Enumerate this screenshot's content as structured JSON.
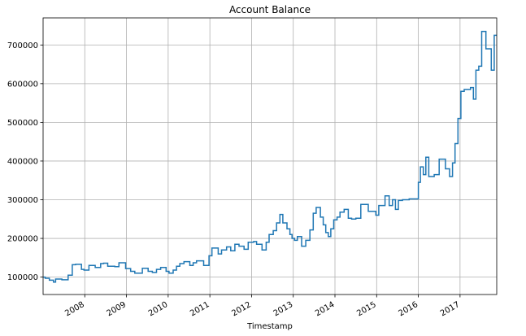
{
  "chart_data": {
    "type": "line",
    "title": "Account Balance",
    "xlabel": "Timestamp",
    "ylabel": "",
    "grid": true,
    "line_color": "#1f77b4",
    "xlim": [
      2007.0,
      2017.88
    ],
    "ylim": [
      55000,
      770000
    ],
    "x_ticks": [
      {
        "value": 2008.0,
        "label": "2008"
      },
      {
        "value": 2009.0,
        "label": "2009"
      },
      {
        "value": 2010.0,
        "label": "2010"
      },
      {
        "value": 2011.0,
        "label": "2011"
      },
      {
        "value": 2012.0,
        "label": "2012"
      },
      {
        "value": 2013.0,
        "label": "2013"
      },
      {
        "value": 2014.0,
        "label": "2014"
      },
      {
        "value": 2015.0,
        "label": "2015"
      },
      {
        "value": 2016.0,
        "label": "2016"
      },
      {
        "value": 2017.0,
        "label": "2017"
      }
    ],
    "y_ticks": [
      {
        "value": 100000,
        "label": "100000"
      },
      {
        "value": 200000,
        "label": "200000"
      },
      {
        "value": 300000,
        "label": "300000"
      },
      {
        "value": 400000,
        "label": "400000"
      },
      {
        "value": 500000,
        "label": "500000"
      },
      {
        "value": 600000,
        "label": "600000"
      },
      {
        "value": 700000,
        "label": "700000"
      }
    ],
    "series": [
      {
        "x": [
          2007.0,
          2007.05,
          2007.15,
          2007.25,
          2007.3,
          2007.45,
          2007.6,
          2007.7,
          2007.78,
          2007.92,
          2007.98,
          2008.1,
          2008.25,
          2008.38,
          2008.45,
          2008.55,
          2008.72,
          2008.82,
          2008.98,
          2009.1,
          2009.2,
          2009.38,
          2009.52,
          2009.62,
          2009.72,
          2009.82,
          2009.95,
          2010.02,
          2010.12,
          2010.2,
          2010.28,
          2010.38,
          2010.52,
          2010.6,
          2010.68,
          2010.85,
          2010.98,
          2011.05,
          2011.2,
          2011.28,
          2011.4,
          2011.5,
          2011.6,
          2011.7,
          2011.82,
          2011.92,
          2012.05,
          2012.12,
          2012.25,
          2012.35,
          2012.42,
          2012.52,
          2012.6,
          2012.68,
          2012.75,
          2012.85,
          2012.92,
          2012.97,
          2013.03,
          2013.1,
          2013.2,
          2013.3,
          2013.4,
          2013.48,
          2013.55,
          2013.65,
          2013.72,
          2013.78,
          2013.84,
          2013.9,
          2013.97,
          2014.05,
          2014.12,
          2014.22,
          2014.32,
          2014.4,
          2014.5,
          2014.62,
          2014.8,
          2014.98,
          2015.05,
          2015.2,
          2015.3,
          2015.38,
          2015.45,
          2015.52,
          2015.62,
          2015.78,
          2016.0,
          2016.05,
          2016.12,
          2016.18,
          2016.25,
          2016.38,
          2016.5,
          2016.65,
          2016.75,
          2016.82,
          2016.88,
          2016.95,
          2017.02,
          2017.1,
          2017.25,
          2017.32,
          2017.38,
          2017.45,
          2017.52,
          2017.62,
          2017.75,
          2017.82,
          2017.86
        ],
        "values": [
          100000,
          97000,
          92000,
          87000,
          95000,
          93000,
          105000,
          132000,
          133000,
          120000,
          118000,
          130000,
          125000,
          135000,
          136000,
          128000,
          127000,
          137000,
          122000,
          115000,
          110000,
          123000,
          115000,
          112000,
          120000,
          125000,
          115000,
          110000,
          118000,
          128000,
          135000,
          140000,
          130000,
          137000,
          142000,
          130000,
          155000,
          175000,
          160000,
          170000,
          178000,
          168000,
          185000,
          180000,
          172000,
          190000,
          192000,
          185000,
          170000,
          190000,
          210000,
          220000,
          240000,
          262000,
          240000,
          225000,
          210000,
          200000,
          195000,
          205000,
          180000,
          195000,
          222000,
          265000,
          280000,
          255000,
          235000,
          215000,
          205000,
          225000,
          248000,
          255000,
          268000,
          275000,
          252000,
          250000,
          252000,
          288000,
          270000,
          260000,
          285000,
          310000,
          285000,
          300000,
          275000,
          298000,
          300000,
          302000,
          345000,
          385000,
          365000,
          410000,
          360000,
          365000,
          405000,
          380000,
          360000,
          395000,
          445000,
          510000,
          580000,
          585000,
          590000,
          560000,
          635000,
          645000,
          735000,
          690000,
          635000,
          725000,
          725000
        ]
      }
    ]
  }
}
